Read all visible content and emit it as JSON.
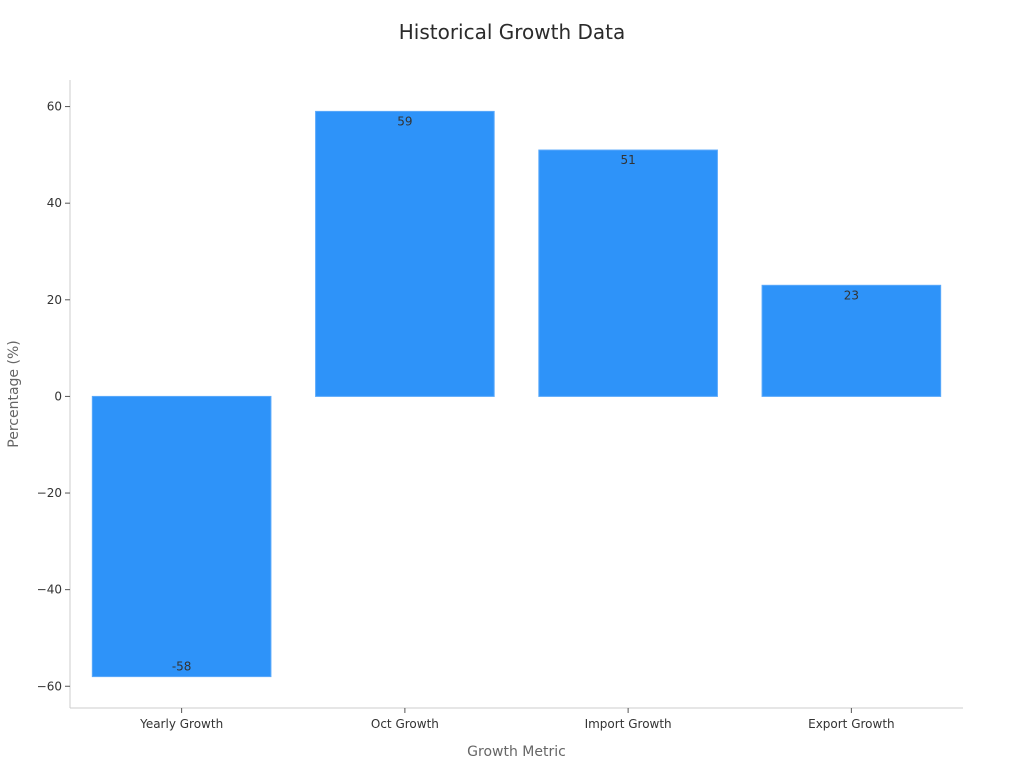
{
  "chart_data": {
    "type": "bar",
    "title": "Historical Growth Data",
    "xlabel": "Growth Metric",
    "ylabel": "Percentage (%)",
    "categories": [
      "Yearly Growth",
      "Oct Growth",
      "Import Growth",
      "Export Growth"
    ],
    "values": [
      -58,
      59,
      51,
      23
    ],
    "data_labels": [
      "-58",
      "59",
      "51",
      "23"
    ],
    "y_ticks": [
      60,
      40,
      20,
      0,
      -20,
      -40,
      -60
    ],
    "y_tick_labels": [
      "60",
      "40",
      "20",
      "0",
      "−20",
      "−40",
      "−60"
    ],
    "ylim": [
      -64.5,
      65.5
    ],
    "grid": false,
    "legend": "none",
    "bar_color": "#2e93f9",
    "axis_color": "#cccccc"
  }
}
